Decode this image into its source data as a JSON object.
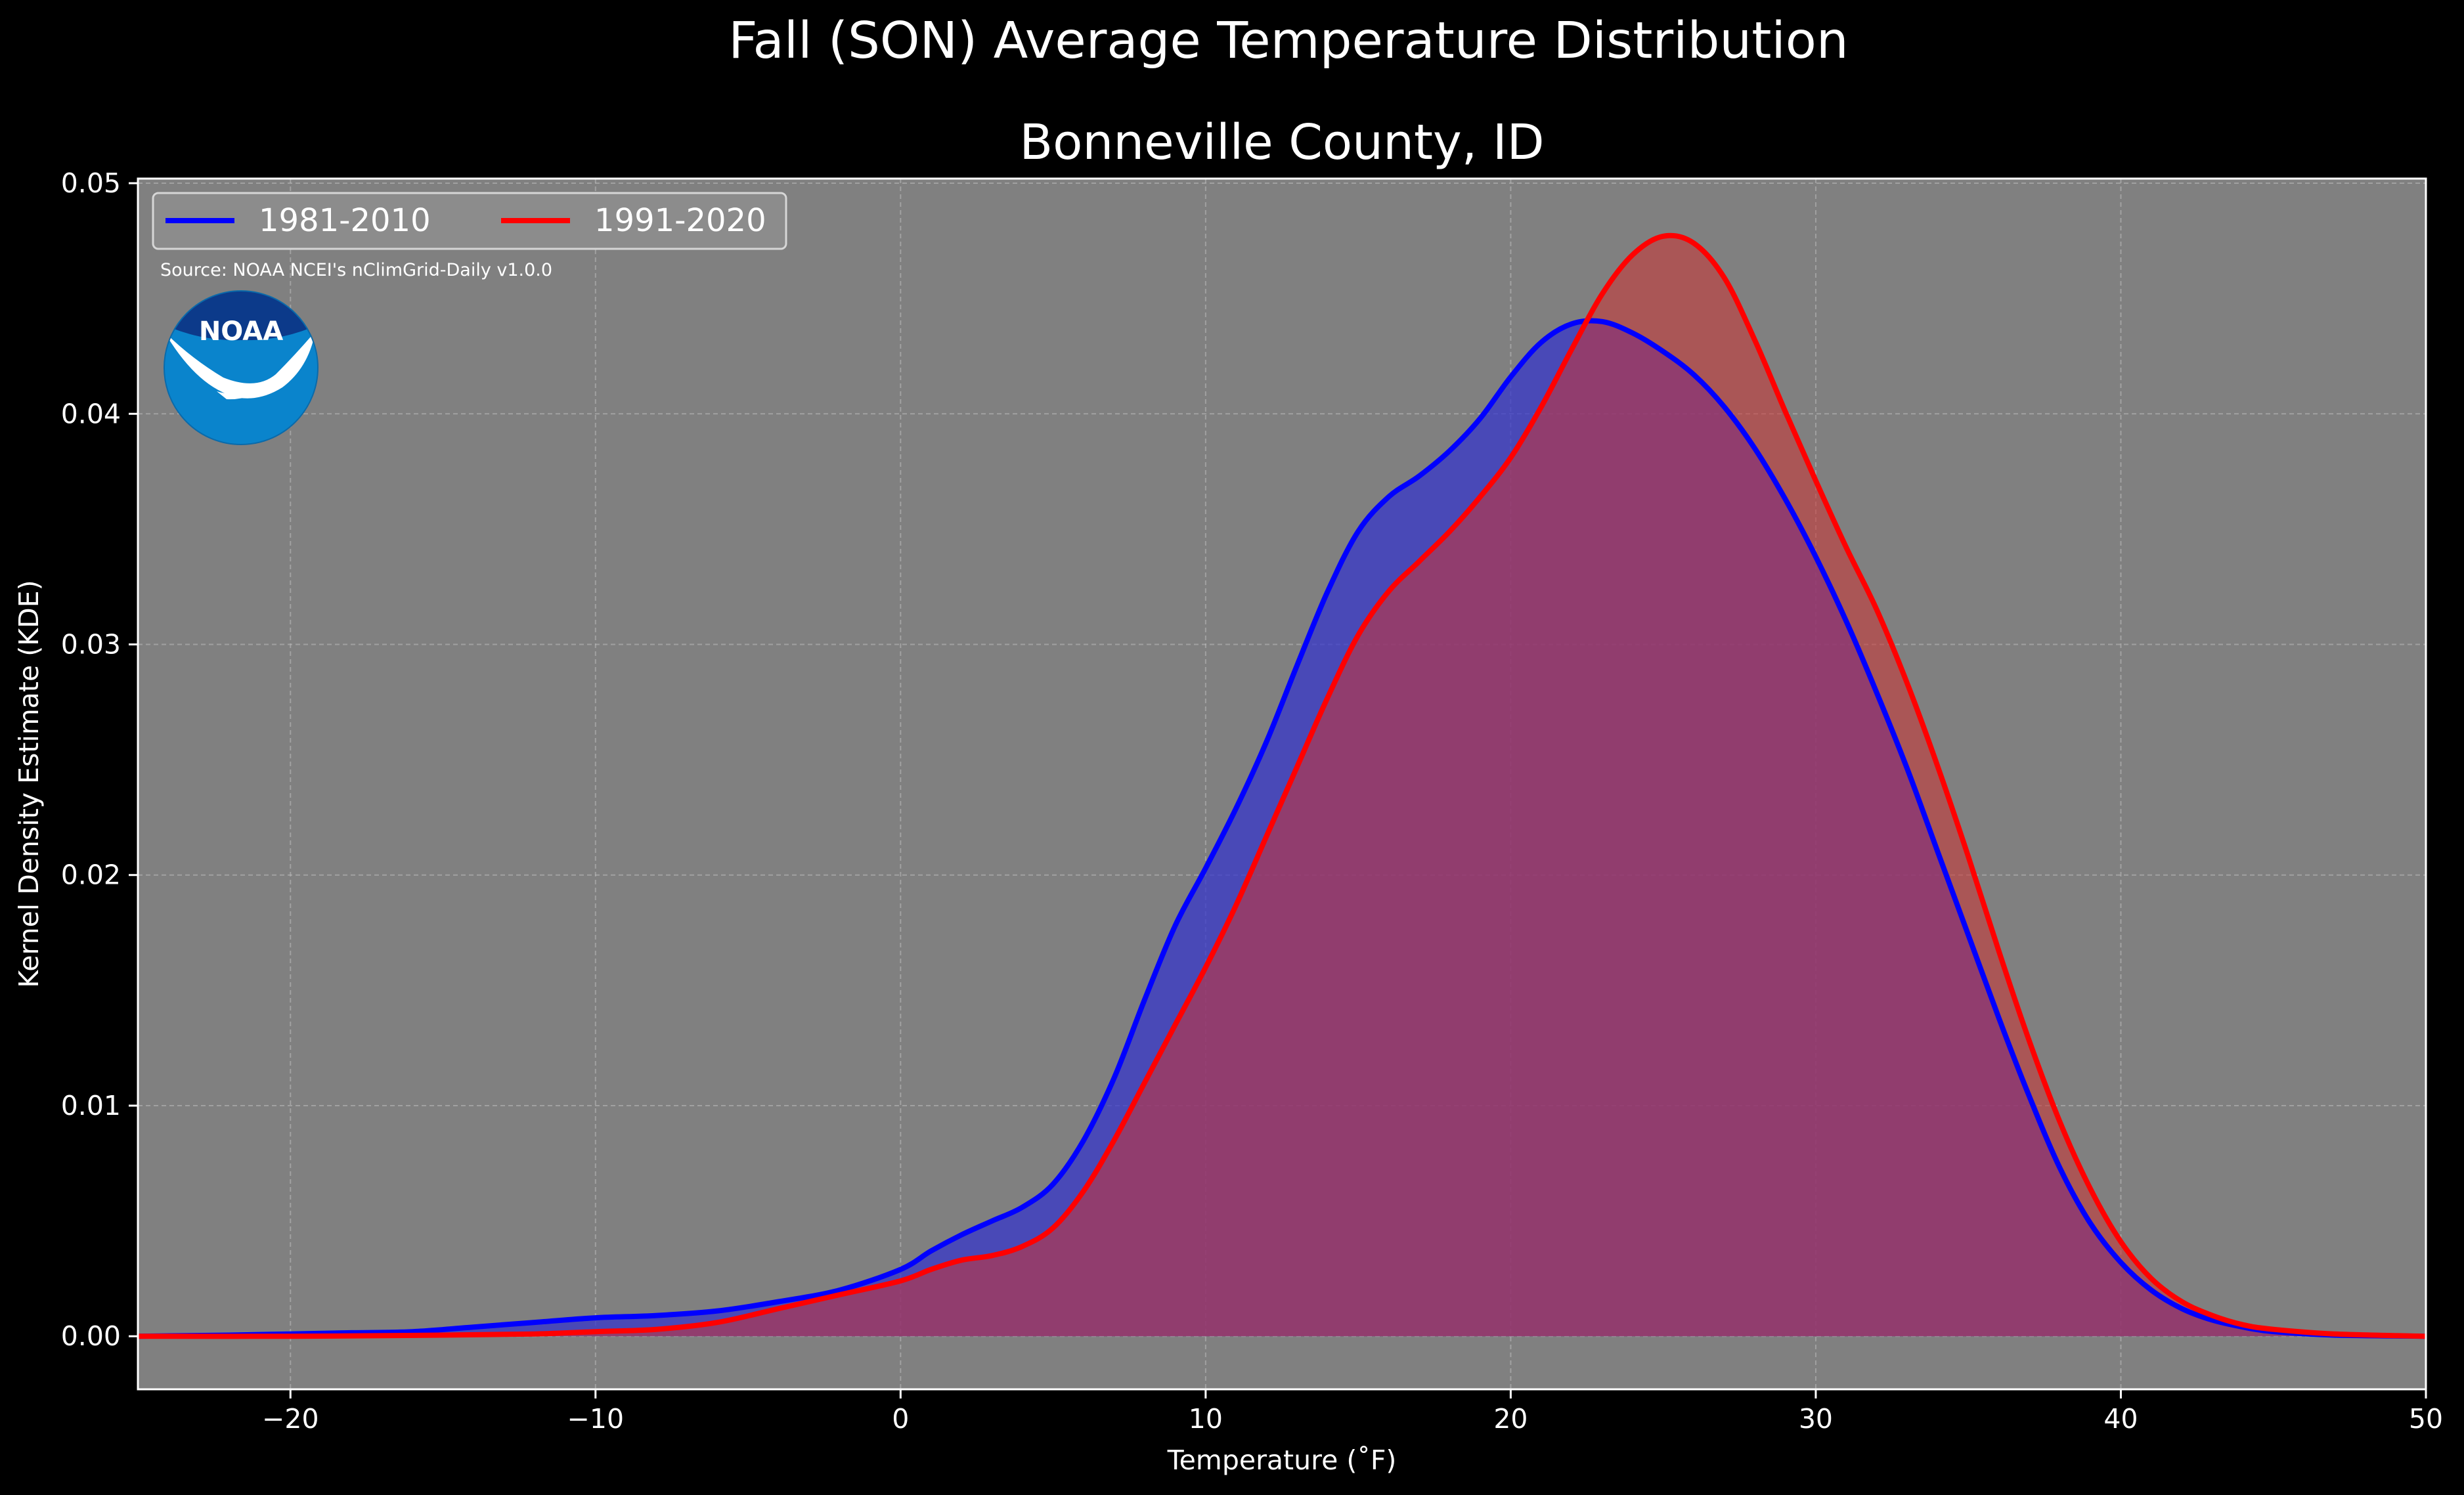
{
  "suptitle": "Fall (SON) Average Temperature Distribution",
  "chart_data": {
    "type": "area",
    "title": "Bonneville County, ID",
    "xlabel": "Temperature (˚F)",
    "ylabel": "Kernel Density Estimate (KDE)",
    "xlim": [
      -25,
      50
    ],
    "ylim": [
      -0.0023,
      0.0502
    ],
    "xticks": [
      -20,
      -10,
      0,
      10,
      20,
      30,
      40,
      50
    ],
    "xtick_labels": [
      "−20",
      "−10",
      "0",
      "10",
      "20",
      "30",
      "40",
      "50"
    ],
    "yticks": [
      0,
      0.01,
      0.02,
      0.03,
      0.04,
      0.05
    ],
    "ytick_labels": [
      "0.00",
      "0.01",
      "0.02",
      "0.03",
      "0.04",
      "0.05"
    ],
    "grid": true,
    "legend_position": "top-left",
    "series": [
      {
        "name": "1981-2010",
        "color": "#0000ff",
        "fill": "#3333cc",
        "x": [
          -25,
          -22,
          -20,
          -18,
          -16,
          -14,
          -12,
          -10,
          -8,
          -6,
          -4,
          -2,
          0,
          1,
          2,
          3,
          4,
          5,
          6,
          7,
          8,
          9,
          10,
          11,
          12,
          13,
          14,
          15,
          16,
          17,
          18,
          19,
          20,
          21,
          22,
          23,
          24,
          25,
          26,
          27,
          28,
          29,
          30,
          31,
          32,
          33,
          34,
          35,
          36,
          37,
          38,
          39,
          40,
          41,
          42,
          43,
          44,
          45,
          47,
          50
        ],
        "y": [
          0,
          5e-05,
          0.0001,
          0.00015,
          0.0002,
          0.0004,
          0.0006,
          0.0008,
          0.0009,
          0.0011,
          0.0015,
          0.002,
          0.0029,
          0.0037,
          0.0044,
          0.005,
          0.0056,
          0.0066,
          0.0085,
          0.0112,
          0.0146,
          0.0178,
          0.0203,
          0.0229,
          0.0258,
          0.0291,
          0.0323,
          0.0349,
          0.0364,
          0.0373,
          0.0384,
          0.0398,
          0.0416,
          0.0431,
          0.0439,
          0.044,
          0.0435,
          0.0427,
          0.0417,
          0.0403,
          0.0385,
          0.0363,
          0.0338,
          0.031,
          0.0279,
          0.0246,
          0.021,
          0.0174,
          0.0138,
          0.0104,
          0.0073,
          0.0049,
          0.0032,
          0.002,
          0.0012,
          0.0007,
          0.0004,
          0.0002,
          5e-05,
          0
        ]
      },
      {
        "name": "1991-2020",
        "color": "#ff0000",
        "fill": "#cc3333",
        "x": [
          -25,
          -20,
          -15,
          -12,
          -10,
          -8,
          -6,
          -4,
          -2,
          0,
          1,
          2,
          3,
          4,
          5,
          6,
          7,
          8,
          9,
          10,
          11,
          12,
          13,
          14,
          15,
          16,
          17,
          18,
          19,
          20,
          21,
          22,
          23,
          24,
          25,
          26,
          27,
          28,
          29,
          30,
          31,
          32,
          33,
          34,
          35,
          36,
          37,
          38,
          39,
          40,
          41,
          42,
          43,
          44,
          45,
          47,
          50
        ],
        "y": [
          0,
          0,
          5e-05,
          0.0001,
          0.0002,
          0.0003,
          0.0006,
          0.0012,
          0.0018,
          0.0024,
          0.0029,
          0.0033,
          0.0035,
          0.0039,
          0.0047,
          0.0063,
          0.0085,
          0.011,
          0.0135,
          0.016,
          0.0187,
          0.0217,
          0.0247,
          0.0277,
          0.0304,
          0.0323,
          0.0336,
          0.0349,
          0.0364,
          0.0381,
          0.0403,
          0.0428,
          0.0452,
          0.0469,
          0.0477,
          0.0474,
          0.0459,
          0.0432,
          0.0401,
          0.0371,
          0.0342,
          0.0315,
          0.0283,
          0.0247,
          0.0208,
          0.0167,
          0.0128,
          0.0093,
          0.0064,
          0.0041,
          0.0025,
          0.0015,
          0.0009,
          0.0005,
          0.0003,
          0.0001,
          0
        ]
      }
    ],
    "source": "Source: NOAA NCEI's nClimGrid-Daily v1.0.0"
  },
  "logo": {
    "text": "NOAA"
  },
  "colors": {
    "background": "#000000",
    "plot_background": "#808080",
    "grid": "#bdbdbd",
    "overlap_fill": "#9e1f5d"
  }
}
